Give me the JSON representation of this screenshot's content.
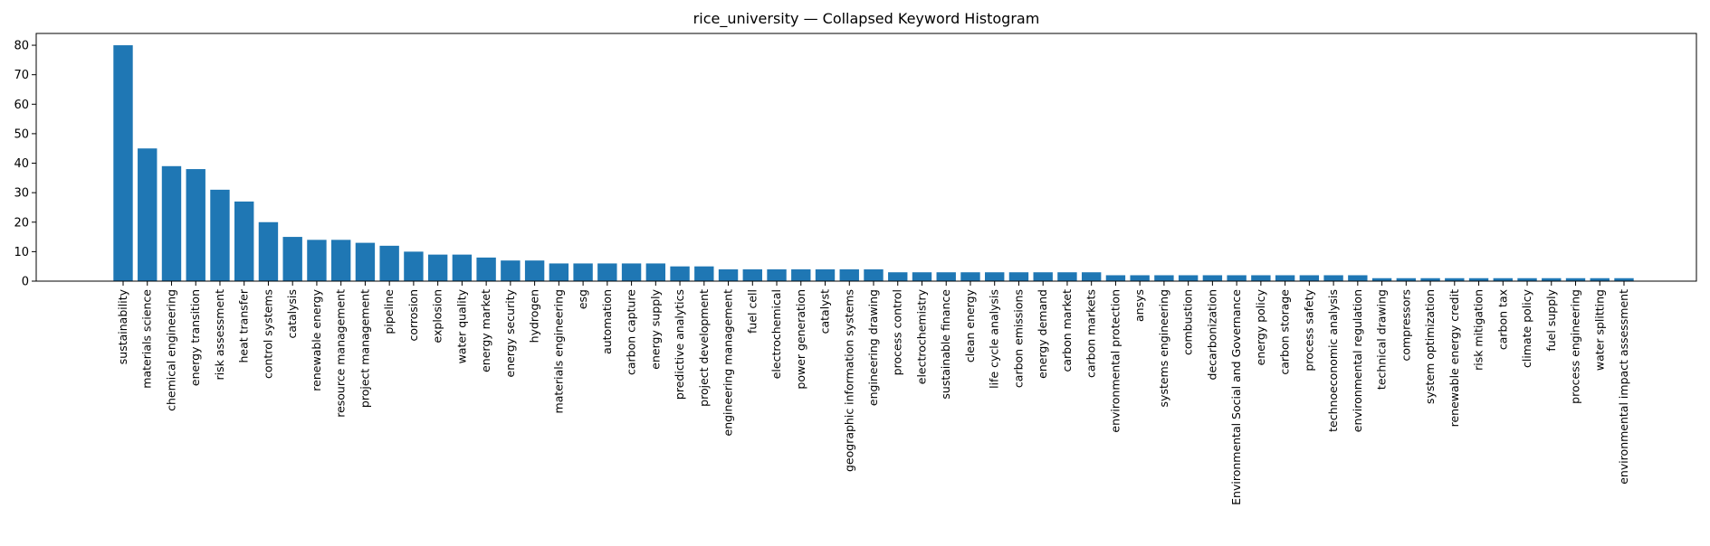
{
  "chart_data": {
    "type": "bar",
    "title": "rice_university — Collapsed Keyword Histogram",
    "xlabel": "",
    "ylabel": "",
    "ylim": [
      0,
      84
    ],
    "yticks": [
      0,
      10,
      20,
      30,
      40,
      50,
      60,
      70,
      80
    ],
    "grid": false,
    "bar_color": "#1f77b4",
    "categories": [
      "sustainability",
      "materials science",
      "chemical engineering",
      "energy transition",
      "risk assessment",
      "heat transfer",
      "control systems",
      "catalysis",
      "renewable energy",
      "resource management",
      "project management",
      "pipeline",
      "corrosion",
      "explosion",
      "water quality",
      "energy market",
      "energy security",
      "hydrogen",
      "materials engineering",
      "esg",
      "automation",
      "carbon capture",
      "energy supply",
      "predictive analytics",
      "project development",
      "engineering management",
      "fuel cell",
      "electrochemical",
      "power generation",
      "catalyst",
      "geographic information systems",
      "engineering drawing",
      "process control",
      "electrochemistry",
      "sustainable finance",
      "clean energy",
      "life cycle analysis",
      "carbon emissions",
      "energy demand",
      "carbon market",
      "carbon markets",
      "environmental protection",
      "ansys",
      "systems engineering",
      "combustion",
      "decarbonization",
      "Environmental Social and Governance",
      "energy policy",
      "carbon storage",
      "process safety",
      "technoeconomic analysis",
      "environmental regulation",
      "technical drawing",
      "compressors",
      "system optimization",
      "renewable energy credit",
      "risk mitigation",
      "carbon tax",
      "climate policy",
      "fuel supply",
      "process engineering",
      "water splitting",
      "environmental impact assessment"
    ],
    "values": [
      80,
      45,
      39,
      38,
      31,
      27,
      20,
      15,
      14,
      14,
      13,
      12,
      10,
      9,
      9,
      8,
      7,
      7,
      6,
      6,
      6,
      6,
      6,
      5,
      5,
      4,
      4,
      4,
      4,
      4,
      4,
      4,
      3,
      3,
      3,
      3,
      3,
      3,
      3,
      3,
      3,
      2,
      2,
      2,
      2,
      2,
      2,
      2,
      2,
      2,
      2,
      2,
      1,
      1,
      1,
      1,
      1,
      1,
      1,
      1,
      1,
      1,
      1
    ]
  }
}
